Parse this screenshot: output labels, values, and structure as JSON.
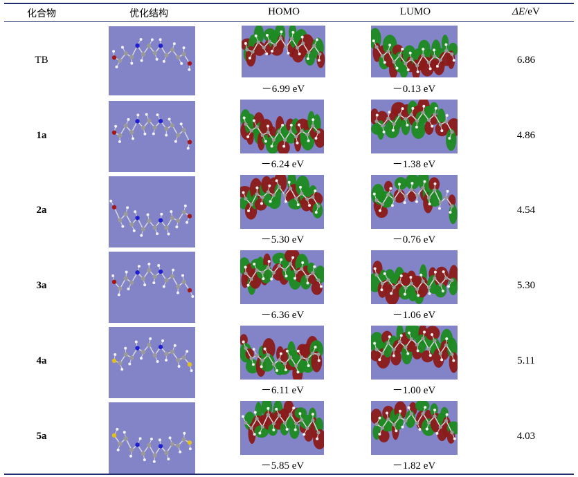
{
  "headers": {
    "compound": "化合物",
    "structure": "优化结构",
    "homo": "HOMO",
    "lumo": "LUMO",
    "gap_symbol": "ΔE",
    "gap_unit": "/eV"
  },
  "rows": [
    {
      "name": "TB",
      "homo": "－6.99 eV",
      "lumo": "－0.13 eV",
      "gap": "6.86"
    },
    {
      "name": "1a",
      "homo": "－6.24 eV",
      "lumo": "－1.38 eV",
      "gap": "4.86"
    },
    {
      "name": "2a",
      "homo": "－5.30 eV",
      "lumo": "－0.76 eV",
      "gap": "4.54"
    },
    {
      "name": "3a",
      "homo": "－6.36 eV",
      "lumo": "－1.06 eV",
      "gap": "5.30"
    },
    {
      "name": "4a",
      "homo": "－6.11 eV",
      "lumo": "－1.00 eV",
      "gap": "5.11"
    },
    {
      "name": "5a",
      "homo": "－5.85 eV",
      "lumo": "－1.82 eV",
      "gap": "4.03"
    }
  ],
  "colors": {
    "panel_background": "#8383c8",
    "orbital_red": "#8b1a1a",
    "orbital_green": "#1e8a22",
    "carbon": "#9a9a9a",
    "hydrogen": "#f2f2f2",
    "nitrogen": "#2020d0",
    "bromine": "#a01818",
    "sulfur": "#e0c020",
    "rule": "#1f2d6e"
  }
}
